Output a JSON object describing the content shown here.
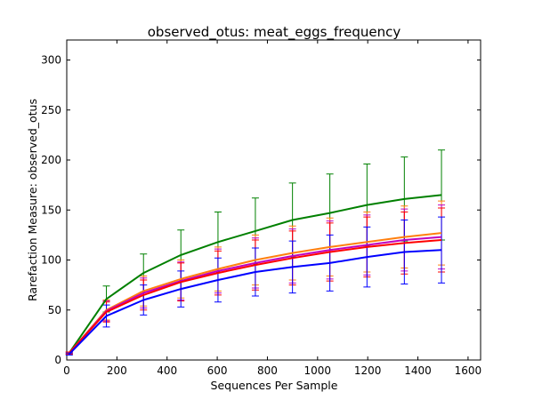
{
  "chart_data": {
    "type": "line",
    "title": "observed_otus: meat_eggs_frequency",
    "xlabel": "Sequences Per Sample",
    "ylabel": "Rarefaction Measure: observed_otus",
    "xlim": [
      0,
      1650
    ],
    "ylim": [
      0,
      320
    ],
    "xticks": [
      0,
      200,
      400,
      600,
      800,
      1000,
      1200,
      1400,
      1600
    ],
    "yticks": [
      0,
      50,
      100,
      150,
      200,
      250,
      300
    ],
    "grid": false,
    "legend": "none",
    "x": [
      10,
      158,
      306,
      455,
      603,
      752,
      900,
      1049,
      1197,
      1346,
      1494
    ],
    "series": [
      {
        "color": "#008000",
        "values": [
          7,
          61,
          87,
          105,
          118,
          129,
          140,
          147,
          155,
          161,
          165
        ],
        "err": [
          1,
          13,
          19,
          25,
          30,
          33,
          37,
          39,
          41,
          42,
          45
        ]
      },
      {
        "color": "#ff7f0e",
        "values": [
          7,
          50,
          69,
          81,
          91,
          100,
          107,
          113,
          118,
          123,
          127
        ],
        "err": [
          1,
          10,
          15,
          19,
          22,
          25,
          27,
          29,
          30,
          31,
          32
        ]
      },
      {
        "color": "#bf00bf",
        "values": [
          7,
          49,
          67,
          79,
          89,
          97,
          104,
          110,
          115,
          120,
          123
        ],
        "err": [
          1,
          10,
          15,
          19,
          22,
          25,
          27,
          29,
          30,
          31,
          32
        ]
      },
      {
        "color": "#ff0000",
        "values": [
          7,
          48,
          65,
          78,
          87,
          95,
          102,
          108,
          113,
          117,
          120
        ],
        "err": [
          1,
          10,
          15,
          19,
          22,
          25,
          27,
          29,
          30,
          31,
          32
        ]
      },
      {
        "color": "#0000ff",
        "values": [
          6,
          44,
          60,
          71,
          80,
          88,
          93,
          97,
          103,
          108,
          110
        ],
        "err": [
          1,
          11,
          15,
          18,
          22,
          24,
          26,
          28,
          30,
          32,
          33
        ]
      }
    ]
  }
}
